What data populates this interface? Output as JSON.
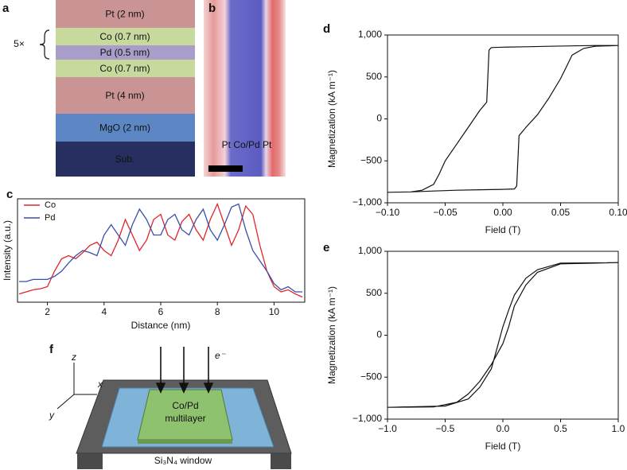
{
  "panel_a": {
    "label": "a",
    "repeat": "5×",
    "layers": [
      {
        "text": "Pt (2 nm)",
        "color": "#c99493"
      },
      {
        "text": "Co (0.7 nm)",
        "color": "#c7d99c"
      },
      {
        "text": "Pd (0.5 nm)",
        "color": "#a99dc9"
      },
      {
        "text": "Co (0.7 nm)",
        "color": "#c7d99c"
      },
      {
        "text": "Pt (4 nm)",
        "color": "#c99493"
      },
      {
        "text": "MgO (2 nm)",
        "color": "#5c87c4"
      },
      {
        "text": "Sub.",
        "color": "#262f60"
      }
    ]
  },
  "panel_b": {
    "label": "b",
    "caption": "Pt Co/Pd Pt"
  },
  "panel_f": {
    "label": "f",
    "axis_z": "z",
    "axis_x": "x",
    "axis_y": "y",
    "beam": "e⁻",
    "sample": [
      "Co/Pd",
      "multilayer"
    ],
    "window": "Si₃N₄ window"
  },
  "chart_data": [
    {
      "type": "line",
      "label": "c",
      "xlabel": "Distance (nm)",
      "ylabel": "Intensity (a.u.)",
      "x": [
        1,
        1.25,
        1.5,
        1.75,
        2,
        2.25,
        2.5,
        2.75,
        3,
        3.25,
        3.5,
        3.75,
        4,
        4.25,
        4.5,
        4.75,
        5,
        5.25,
        5.5,
        5.75,
        6,
        6.25,
        6.5,
        6.75,
        7,
        7.25,
        7.5,
        7.75,
        8,
        8.25,
        8.5,
        8.75,
        9,
        9.25,
        9.5,
        9.75,
        10,
        10.25,
        10.5,
        10.75,
        11
      ],
      "series": [
        {
          "name": "Co",
          "color": "#e0262b",
          "values": [
            0.08,
            0.1,
            0.12,
            0.13,
            0.15,
            0.3,
            0.42,
            0.45,
            0.42,
            0.48,
            0.55,
            0.58,
            0.5,
            0.45,
            0.6,
            0.8,
            0.65,
            0.5,
            0.6,
            0.8,
            0.85,
            0.65,
            0.6,
            0.78,
            0.85,
            0.7,
            0.6,
            0.8,
            0.95,
            0.75,
            0.55,
            0.7,
            0.93,
            0.85,
            0.55,
            0.3,
            0.15,
            0.1,
            0.12,
            0.08,
            0.05
          ]
        },
        {
          "name": "Pd",
          "color": "#3a4fa8",
          "values": [
            0.2,
            0.2,
            0.22,
            0.22,
            0.22,
            0.25,
            0.3,
            0.38,
            0.45,
            0.5,
            0.48,
            0.45,
            0.65,
            0.75,
            0.65,
            0.55,
            0.75,
            0.9,
            0.8,
            0.65,
            0.65,
            0.8,
            0.85,
            0.7,
            0.65,
            0.8,
            0.9,
            0.7,
            0.6,
            0.75,
            0.92,
            0.95,
            0.7,
            0.5,
            0.4,
            0.3,
            0.18,
            0.12,
            0.15,
            0.1,
            0.1
          ]
        }
      ],
      "xlim": [
        1,
        11
      ],
      "xticks": [
        2,
        4,
        6,
        8,
        10
      ],
      "ylim": [
        0,
        1
      ],
      "legend": "upper left"
    },
    {
      "type": "line",
      "label": "d",
      "xlabel": "Field (T)",
      "ylabel": "Magnetization (kA m⁻¹)",
      "color": "#111111",
      "x": [
        -0.1,
        -0.08,
        -0.06,
        -0.04,
        -0.02,
        0,
        0.01,
        0.012,
        0.014,
        0.02,
        0.03,
        0.04,
        0.05,
        0.055,
        0.06,
        0.07,
        0.08,
        0.1,
        0.08,
        0.06,
        0.04,
        0.02,
        0,
        -0.01,
        -0.012,
        -0.014,
        -0.02,
        -0.03,
        -0.04,
        -0.05,
        -0.055,
        -0.06,
        -0.07,
        -0.08,
        -0.1
      ],
      "values": [
        -875,
        -870,
        -860,
        -850,
        -845,
        -840,
        -835,
        -800,
        -200,
        -100,
        50,
        250,
        480,
        620,
        760,
        840,
        865,
        875,
        875,
        870,
        865,
        860,
        855,
        850,
        820,
        200,
        100,
        -100,
        -300,
        -500,
        -650,
        -780,
        -850,
        -870,
        -875
      ],
      "xlim": [
        -0.1,
        0.1
      ],
      "xticks": [
        {
          "value": -0.1,
          "label": "−0.10"
        },
        {
          "value": -0.05,
          "label": "−0.05"
        },
        {
          "value": 0,
          "label": "0.00"
        },
        {
          "value": 0.05,
          "label": "0.05"
        },
        {
          "value": 0.1,
          "label": "0.10"
        }
      ],
      "ylim": [
        -1000,
        1000
      ],
      "yticks": [
        {
          "value": -1000,
          "label": "−1,000"
        },
        {
          "value": -500,
          "label": "−500"
        },
        0,
        500,
        {
          "value": 1000,
          "label": "1,000"
        }
      ]
    },
    {
      "type": "line",
      "label": "e",
      "xlabel": "Field (T)",
      "ylabel": "Magnetization (kA m⁻¹)",
      "color": "#111111",
      "x": [
        -1,
        -0.6,
        -0.4,
        -0.3,
        -0.2,
        -0.1,
        0,
        0.05,
        0.1,
        0.2,
        0.3,
        0.5,
        1,
        0.5,
        0.3,
        0.2,
        0.1,
        0.05,
        0,
        -0.05,
        -0.1,
        -0.2,
        -0.3,
        -0.5,
        -1
      ],
      "values": [
        -860,
        -855,
        -800,
        -700,
        -550,
        -350,
        -100,
        100,
        350,
        600,
        750,
        850,
        865,
        860,
        780,
        680,
        480,
        300,
        100,
        -150,
        -400,
        -620,
        -760,
        -845,
        -860
      ],
      "xlim": [
        -1,
        1
      ],
      "xticks": [
        {
          "value": -1,
          "label": "−1.0"
        },
        {
          "value": -0.5,
          "label": "−0.5"
        },
        {
          "value": 0,
          "label": "0.0"
        },
        {
          "value": 0.5,
          "label": "0.5"
        },
        {
          "value": 1,
          "label": "1.0"
        }
      ],
      "ylim": [
        -1000,
        1000
      ],
      "yticks": [
        {
          "value": -1000,
          "label": "−1,000"
        },
        {
          "value": -500,
          "label": "−500"
        },
        0,
        500,
        {
          "value": 1000,
          "label": "1,000"
        }
      ]
    }
  ]
}
